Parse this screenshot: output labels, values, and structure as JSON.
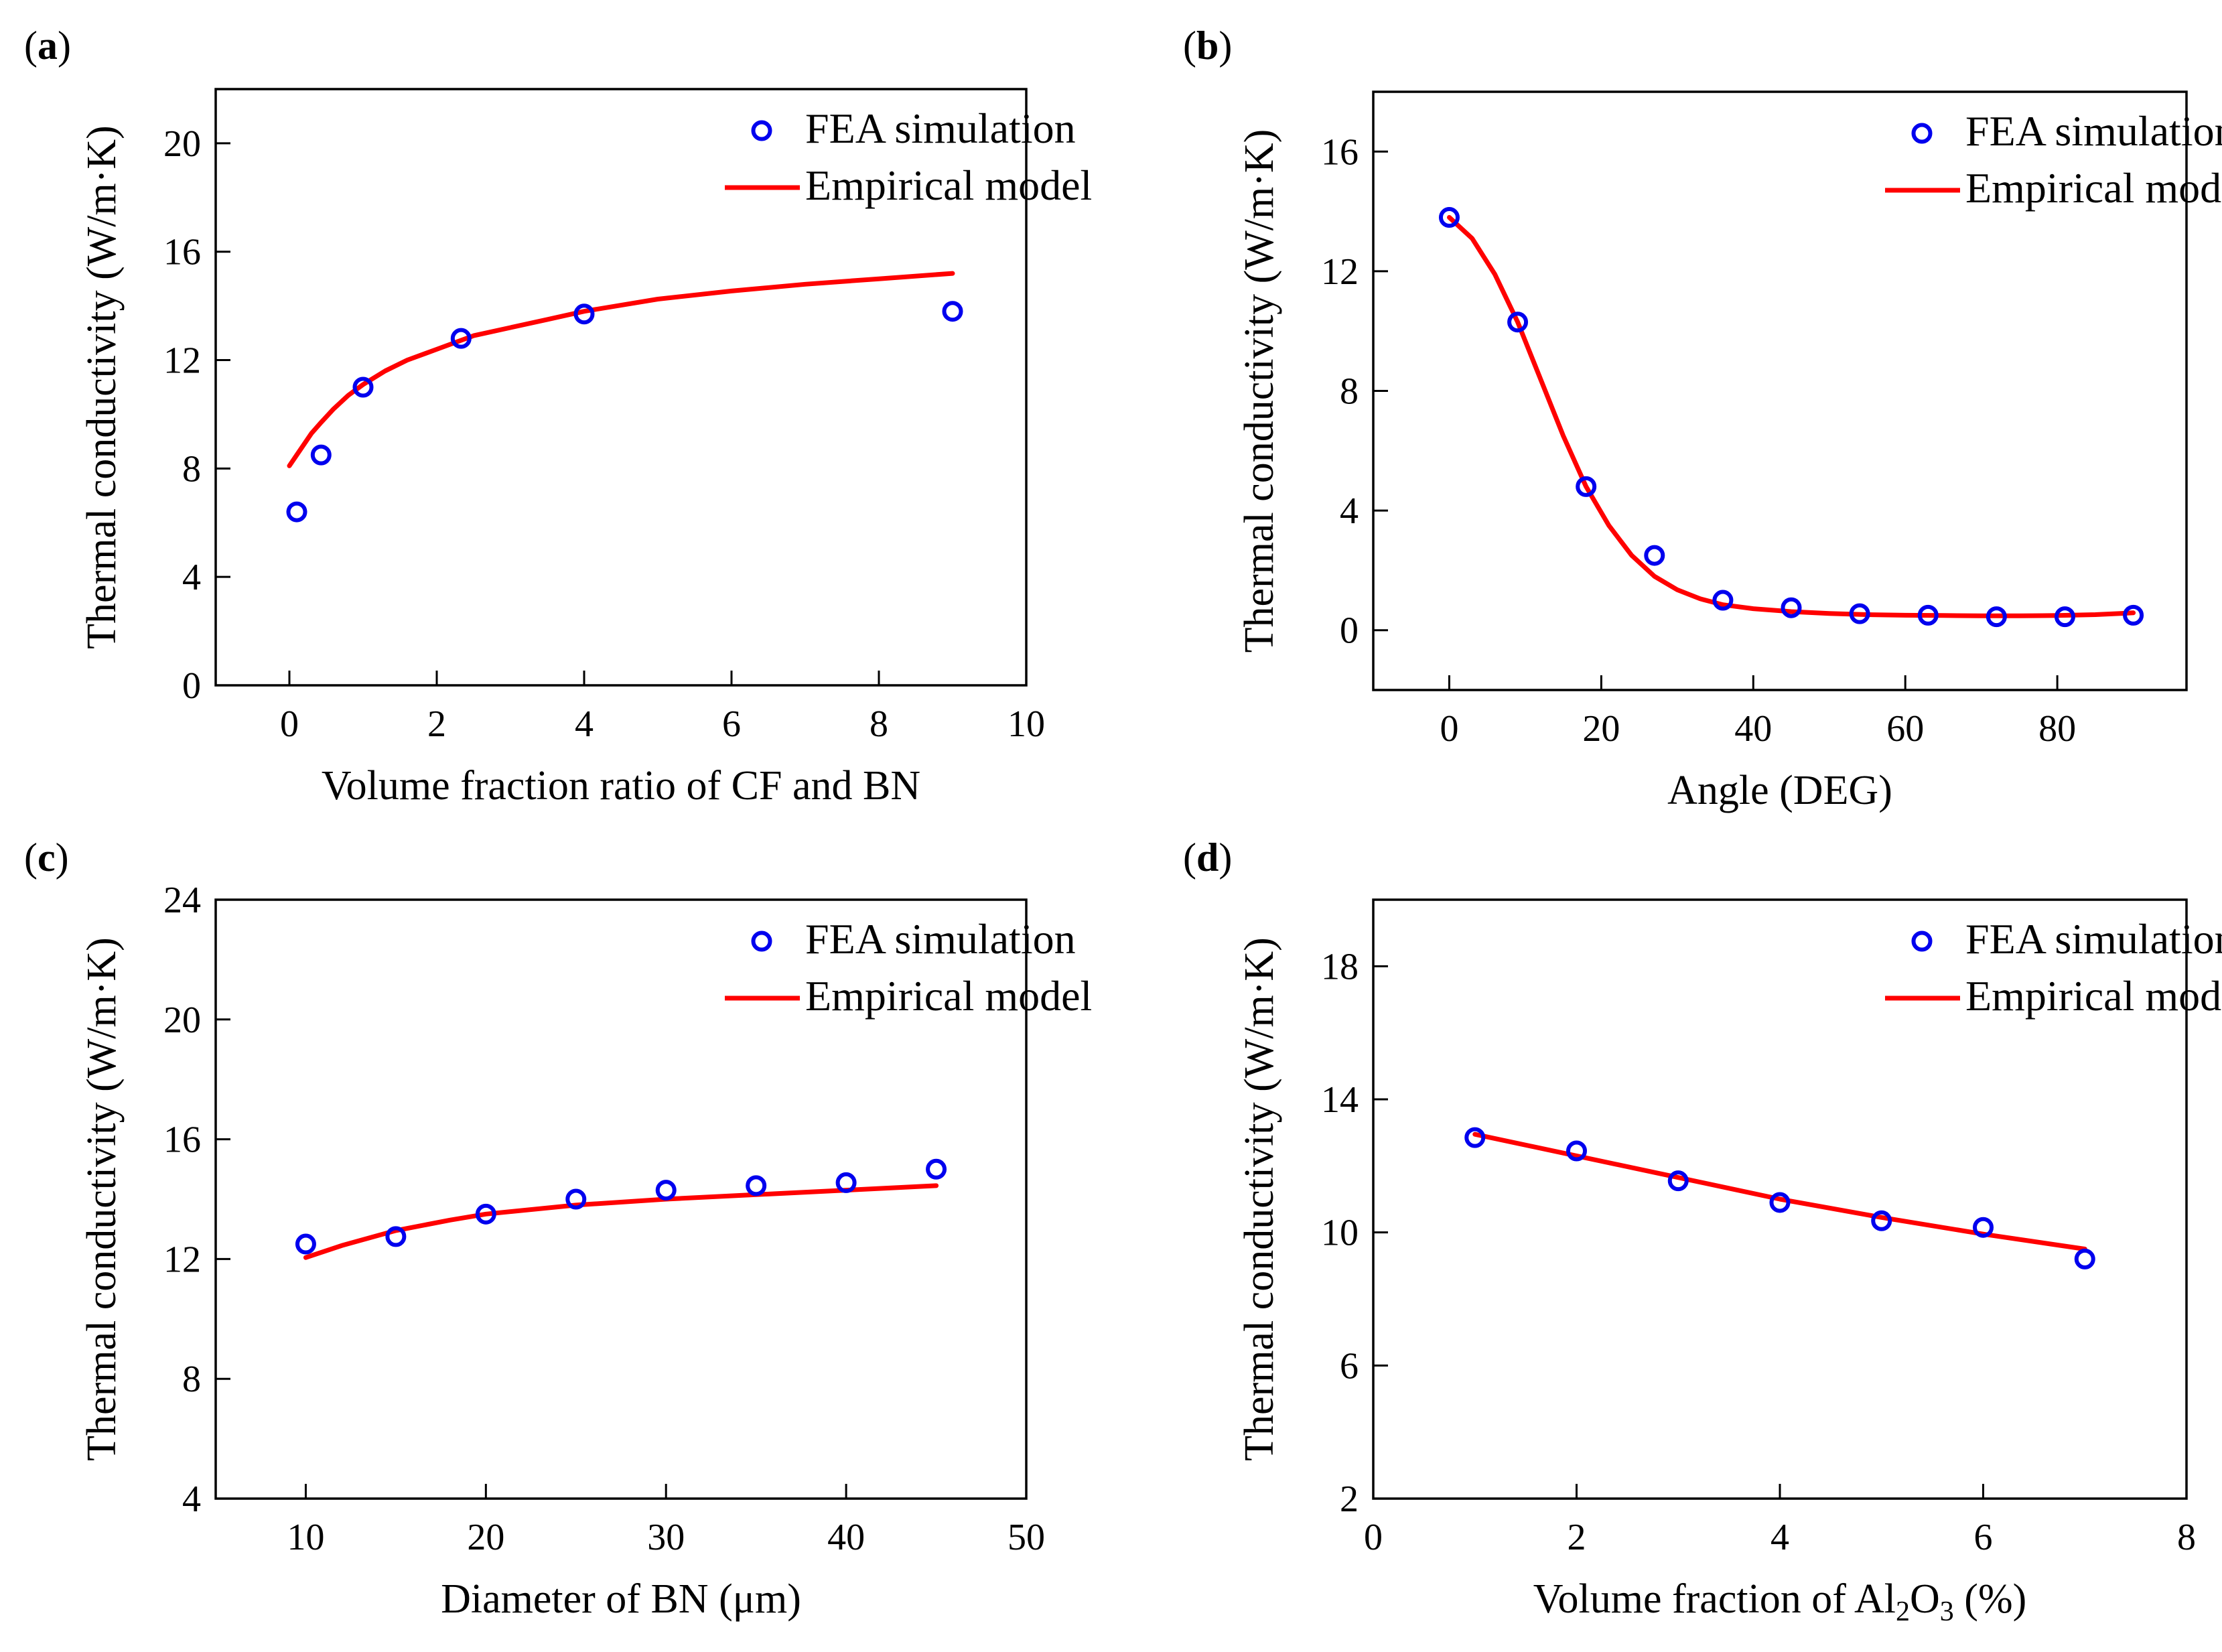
{
  "figure": {
    "panels": [
      {
        "id": "a",
        "label": "a",
        "xlabel": "Volume fraction ratio of CF and BN",
        "ylabel": "Thermal conductivity (W/m·K)",
        "xlim": [
          -1,
          10
        ],
        "ylim": [
          0,
          22
        ],
        "xticks": [
          0,
          2,
          4,
          6,
          8,
          10
        ],
        "xtick_labels": [
          "0",
          "2",
          "4",
          "6",
          "8",
          "10"
        ],
        "yticks": [
          0,
          4,
          8,
          12,
          16,
          20
        ],
        "ytick_labels": [
          "0",
          "4",
          "8",
          "12",
          "16",
          "20"
        ],
        "legend": {
          "position": "top-right",
          "scatter": "FEA simulation",
          "line": "Empirical model"
        },
        "scatter": {
          "name": "FEA simulation",
          "color": "#0000ee",
          "x": [
            0.1,
            0.43,
            1.0,
            2.33,
            4.0,
            9.0
          ],
          "y": [
            6.4,
            8.5,
            11.0,
            12.8,
            13.7,
            13.8
          ]
        },
        "line": {
          "name": "Empirical model",
          "color": "#ff0000",
          "x": [
            0.0,
            0.1,
            0.2,
            0.3,
            0.43,
            0.6,
            0.8,
            1.0,
            1.3,
            1.6,
            2.0,
            2.5,
            3.0,
            3.5,
            4.0,
            5.0,
            6.0,
            7.0,
            8.0,
            9.0
          ],
          "y": [
            8.1,
            8.5,
            8.9,
            9.3,
            9.7,
            10.2,
            10.7,
            11.1,
            11.6,
            12.0,
            12.4,
            12.9,
            13.2,
            13.5,
            13.8,
            14.25,
            14.55,
            14.8,
            15.0,
            15.2
          ]
        }
      },
      {
        "id": "b",
        "label": "b",
        "xlabel": "Angle (DEG)",
        "ylabel": "Thermal conductivity (W/m·K)",
        "xlim": [
          -10,
          97
        ],
        "ylim": [
          -2,
          18
        ],
        "xticks": [
          0,
          20,
          40,
          60,
          80
        ],
        "xtick_labels": [
          "0",
          "20",
          "40",
          "60",
          "80"
        ],
        "yticks": [
          0,
          4,
          8,
          12,
          16
        ],
        "ytick_labels": [
          "0",
          "4",
          "8",
          "12",
          "16"
        ],
        "legend": {
          "position": "top-right",
          "scatter": "FEA simulation",
          "line": "Empirical model"
        },
        "scatter": {
          "name": "FEA simulation",
          "color": "#0000ee",
          "x": [
            0,
            9,
            18,
            27,
            36,
            45,
            54,
            63,
            72,
            81,
            90
          ],
          "y": [
            13.8,
            10.3,
            4.8,
            2.5,
            1.0,
            0.75,
            0.55,
            0.5,
            0.45,
            0.45,
            0.5
          ]
        },
        "line": {
          "name": "Empirical model",
          "color": "#ff0000",
          "x": [
            0,
            3,
            6,
            9,
            12,
            15,
            18,
            21,
            24,
            27,
            30,
            33,
            36,
            40,
            45,
            50,
            55,
            60,
            65,
            70,
            75,
            80,
            85,
            90
          ],
          "y": [
            13.8,
            13.1,
            11.9,
            10.3,
            8.4,
            6.5,
            4.8,
            3.5,
            2.5,
            1.8,
            1.35,
            1.05,
            0.85,
            0.72,
            0.62,
            0.56,
            0.52,
            0.5,
            0.49,
            0.48,
            0.48,
            0.49,
            0.52,
            0.58
          ]
        }
      },
      {
        "id": "c",
        "label": "c",
        "xlabel": "Diameter of BN (μm)",
        "ylabel": "Thermal conductivity (W/m·K)",
        "xlim": [
          5,
          50
        ],
        "ylim": [
          4,
          24
        ],
        "xticks": [
          10,
          20,
          30,
          40,
          50
        ],
        "xtick_labels": [
          "10",
          "20",
          "30",
          "40",
          "50"
        ],
        "yticks": [
          4,
          8,
          12,
          16,
          20,
          24
        ],
        "ytick_labels": [
          "4",
          "8",
          "12",
          "16",
          "20",
          "24"
        ],
        "legend": {
          "position": "top-right",
          "scatter": "FEA simulation",
          "line": "Empirical model"
        },
        "scatter": {
          "name": "FEA simulation",
          "color": "#0000ee",
          "x": [
            10,
            15,
            20,
            25,
            30,
            35,
            40,
            45
          ],
          "y": [
            12.5,
            12.75,
            13.5,
            14.0,
            14.3,
            14.45,
            14.55,
            15.0
          ]
        },
        "line": {
          "name": "Empirical model",
          "color": "#ff0000",
          "x": [
            10,
            12,
            15,
            18,
            20,
            25,
            30,
            35,
            40,
            45
          ],
          "y": [
            12.05,
            12.45,
            12.95,
            13.3,
            13.5,
            13.8,
            14.0,
            14.15,
            14.3,
            14.45
          ]
        }
      },
      {
        "id": "d",
        "label": "d",
        "xlabel_parts": [
          "Volume fraction of Al",
          "2",
          "O",
          "3",
          " (%)"
        ],
        "ylabel": "Thermal conductivity (W/m·K)",
        "xlim": [
          0,
          8
        ],
        "ylim": [
          2,
          20
        ],
        "xticks": [
          0,
          2,
          4,
          6,
          8
        ],
        "xtick_labels": [
          "0",
          "2",
          "4",
          "6",
          "8"
        ],
        "yticks": [
          2,
          6,
          10,
          14,
          18
        ],
        "ytick_labels": [
          "2",
          "6",
          "10",
          "14",
          "18"
        ],
        "legend": {
          "position": "top-right",
          "scatter": "FEA simulation",
          "line": "Empirical model"
        },
        "scatter": {
          "name": "FEA simulation",
          "color": "#0000ee",
          "x": [
            1,
            2,
            3,
            4,
            5,
            6,
            7
          ],
          "y": [
            12.85,
            12.45,
            11.55,
            10.9,
            10.35,
            10.15,
            9.2
          ]
        },
        "line": {
          "name": "Empirical model",
          "color": "#ff0000",
          "x": [
            1,
            2,
            3,
            4,
            5,
            6,
            7
          ],
          "y": [
            12.95,
            12.3,
            11.65,
            11.0,
            10.45,
            9.95,
            9.5
          ]
        }
      }
    ]
  },
  "chart_data": [
    {
      "type": "scatter",
      "panel": "a",
      "xlabel": "Volume fraction ratio of CF and BN",
      "ylabel": "Thermal conductivity (W/m·K)",
      "xlim": [
        -1,
        10
      ],
      "ylim": [
        0,
        22
      ],
      "legend": "top-right",
      "series": [
        {
          "name": "FEA simulation",
          "x": [
            0.1,
            0.43,
            1.0,
            2.33,
            4.0,
            9.0
          ],
          "y": [
            6.4,
            8.5,
            11.0,
            12.8,
            13.7,
            13.8
          ]
        },
        {
          "name": "Empirical model",
          "x": [
            0.0,
            0.1,
            0.2,
            0.3,
            0.43,
            0.6,
            0.8,
            1.0,
            1.3,
            1.6,
            2.0,
            2.5,
            3.0,
            3.5,
            4.0,
            5.0,
            6.0,
            7.0,
            8.0,
            9.0
          ],
          "y": [
            8.1,
            8.5,
            8.9,
            9.3,
            9.7,
            10.2,
            10.7,
            11.1,
            11.6,
            12.0,
            12.4,
            12.9,
            13.2,
            13.5,
            13.8,
            14.25,
            14.55,
            14.8,
            15.0,
            15.2
          ]
        }
      ]
    },
    {
      "type": "scatter",
      "panel": "b",
      "xlabel": "Angle (DEG)",
      "ylabel": "Thermal conductivity (W/m·K)",
      "xlim": [
        -10,
        97
      ],
      "ylim": [
        -2,
        18
      ],
      "legend": "top-right",
      "series": [
        {
          "name": "FEA simulation",
          "x": [
            0,
            9,
            18,
            27,
            36,
            45,
            54,
            63,
            72,
            81,
            90
          ],
          "y": [
            13.8,
            10.3,
            4.8,
            2.5,
            1.0,
            0.75,
            0.55,
            0.5,
            0.45,
            0.45,
            0.5
          ]
        },
        {
          "name": "Empirical model",
          "x": [
            0,
            3,
            6,
            9,
            12,
            15,
            18,
            21,
            24,
            27,
            30,
            33,
            36,
            40,
            45,
            50,
            55,
            60,
            65,
            70,
            75,
            80,
            85,
            90
          ],
          "y": [
            13.8,
            13.1,
            11.9,
            10.3,
            8.4,
            6.5,
            4.8,
            3.5,
            2.5,
            1.8,
            1.35,
            1.05,
            0.85,
            0.72,
            0.62,
            0.56,
            0.52,
            0.5,
            0.49,
            0.48,
            0.48,
            0.49,
            0.52,
            0.58
          ]
        }
      ]
    },
    {
      "type": "scatter",
      "panel": "c",
      "xlabel": "Diameter of BN (μm)",
      "ylabel": "Thermal conductivity (W/m·K)",
      "xlim": [
        5,
        50
      ],
      "ylim": [
        4,
        24
      ],
      "legend": "top-right",
      "series": [
        {
          "name": "FEA simulation",
          "x": [
            10,
            15,
            20,
            25,
            30,
            35,
            40,
            45
          ],
          "y": [
            12.5,
            12.75,
            13.5,
            14.0,
            14.3,
            14.45,
            14.55,
            15.0
          ]
        },
        {
          "name": "Empirical model",
          "x": [
            10,
            12,
            15,
            18,
            20,
            25,
            30,
            35,
            40,
            45
          ],
          "y": [
            12.05,
            12.45,
            12.95,
            13.3,
            13.5,
            13.8,
            14.0,
            14.15,
            14.3,
            14.45
          ]
        }
      ]
    },
    {
      "type": "scatter",
      "panel": "d",
      "xlabel": "Volume fraction of Al2O3 (%)",
      "ylabel": "Thermal conductivity (W/m·K)",
      "xlim": [
        0,
        8
      ],
      "ylim": [
        2,
        20
      ],
      "legend": "top-right",
      "series": [
        {
          "name": "FEA simulation",
          "x": [
            1,
            2,
            3,
            4,
            5,
            6,
            7
          ],
          "y": [
            12.85,
            12.45,
            11.55,
            10.9,
            10.35,
            10.15,
            9.2
          ]
        },
        {
          "name": "Empirical model",
          "x": [
            1,
            2,
            3,
            4,
            5,
            6,
            7
          ],
          "y": [
            12.95,
            12.3,
            11.65,
            11.0,
            10.45,
            9.95,
            9.5
          ]
        }
      ]
    }
  ]
}
